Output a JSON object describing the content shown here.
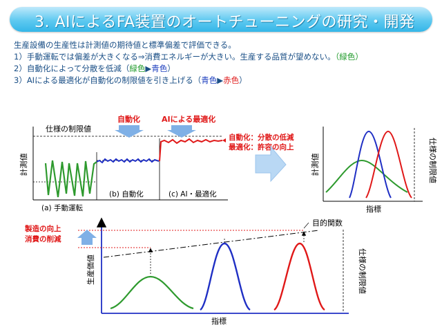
{
  "title": "3. AIによるFA装置のオートチューニングの研究・開発",
  "intro": {
    "line1": "生産設備の生産性は計測値の期待値と標準偏差で評価できる。",
    "line2_prefix": "1）手動運転では偏差が大きくなる⇒消費エネルギーが大きい。生産する品質が望めない。",
    "line2_color": "（緑色）",
    "line3_prefix": "2）自動化によって分散を低減（",
    "line3_a": "緑色",
    "line3_arrow": "▶",
    "line3_b": "青色",
    "line3_suffix": "）",
    "line4_prefix": "3）AIによる最適化が自動化の制限値を引き上げる（",
    "line4_a": "青色",
    "line4_arrow": "▶",
    "line4_b": "赤色",
    "line4_suffix": "）"
  },
  "top_left": {
    "label_auto": "自動化",
    "label_ai": "AIによる最適化",
    "label_limit": "仕様の制限値",
    "ylabel": "計測値",
    "seg_a": "(a) 手動運転",
    "seg_b": "(b) 自動化",
    "seg_c": "(c) AI・最適化",
    "effect1": "自動化：分散の低減",
    "effect2": "最適化：許容の向上"
  },
  "top_right": {
    "ylabel": "計測値",
    "xlabel": "指標",
    "limit_label": "仕様の制限値"
  },
  "bottom": {
    "ylabel": "生産価値",
    "xlabel": "指標",
    "objective": "目的関数",
    "limit_label": "仕様の制限値",
    "left1": "製造の向上",
    "left2": "消費の削減"
  },
  "colors": {
    "green": "#2e9a2e",
    "blue": "#1f2fc4",
    "red": "#e01818",
    "title_blue": "#1a4f86",
    "arrow_blue": "#7fb0e6"
  }
}
